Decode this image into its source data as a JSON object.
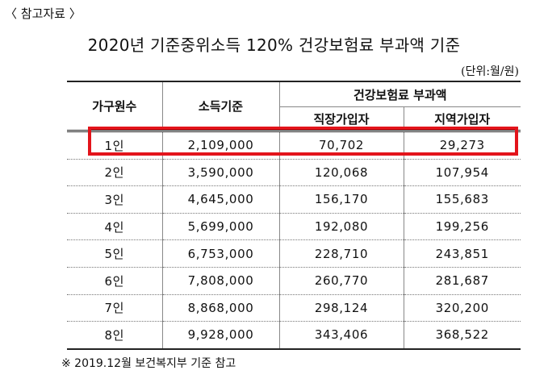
{
  "reference_tag": "〈 참고자료 〉",
  "title": "2020년 기준중위소득 120% 건강보험료 부과액 기준",
  "unit": "(단위:월/원)",
  "table": {
    "headers": {
      "household": "가구원수",
      "income": "소득기준",
      "premium_group": "건강보험료 부과액",
      "employee": "직장가입자",
      "regional": "지역가입자"
    },
    "rows": [
      {
        "household": "1인",
        "income": "2,109,000",
        "employee": "70,702",
        "regional": "29,273"
      },
      {
        "household": "2인",
        "income": "3,590,000",
        "employee": "120,068",
        "regional": "107,954"
      },
      {
        "household": "3인",
        "income": "4,645,000",
        "employee": "156,170",
        "regional": "155,683"
      },
      {
        "household": "4인",
        "income": "5,699,000",
        "employee": "192,080",
        "regional": "199,256"
      },
      {
        "household": "5인",
        "income": "6,753,000",
        "employee": "228,710",
        "regional": "243,851"
      },
      {
        "household": "6인",
        "income": "7,808,000",
        "employee": "260,770",
        "regional": "281,687"
      },
      {
        "household": "7인",
        "income": "8,868,000",
        "employee": "298,124",
        "regional": "320,200"
      },
      {
        "household": "8인",
        "income": "9,928,000",
        "employee": "343,406",
        "regional": "368,522"
      }
    ]
  },
  "highlight_color": "#e3141b",
  "note": "※ 2019.12월 보건복지부 기준 참고"
}
